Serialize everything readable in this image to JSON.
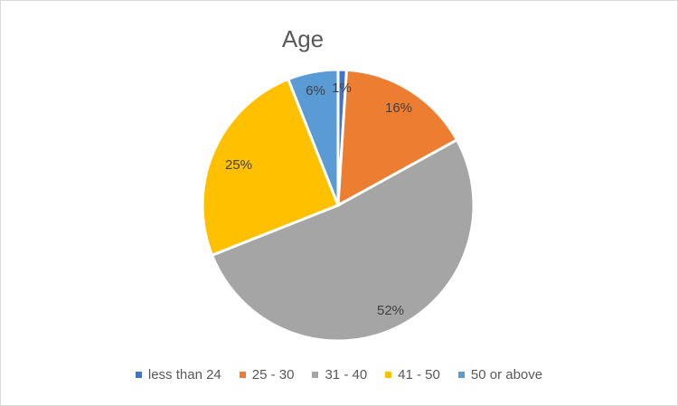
{
  "chart_data": {
    "type": "pie",
    "title": "Age",
    "categories": [
      "less than 24",
      "25 - 30",
      "31 - 40",
      "41 - 50",
      "50 or above"
    ],
    "values": [
      1,
      16,
      52,
      25,
      6
    ],
    "labels": [
      "1%",
      "16%",
      "52%",
      "25%",
      "6%"
    ],
    "colors": [
      "#4472C4",
      "#ED7D31",
      "#A5A5A5",
      "#FFC000",
      "#5B9BD5"
    ],
    "legend_position": "bottom"
  }
}
